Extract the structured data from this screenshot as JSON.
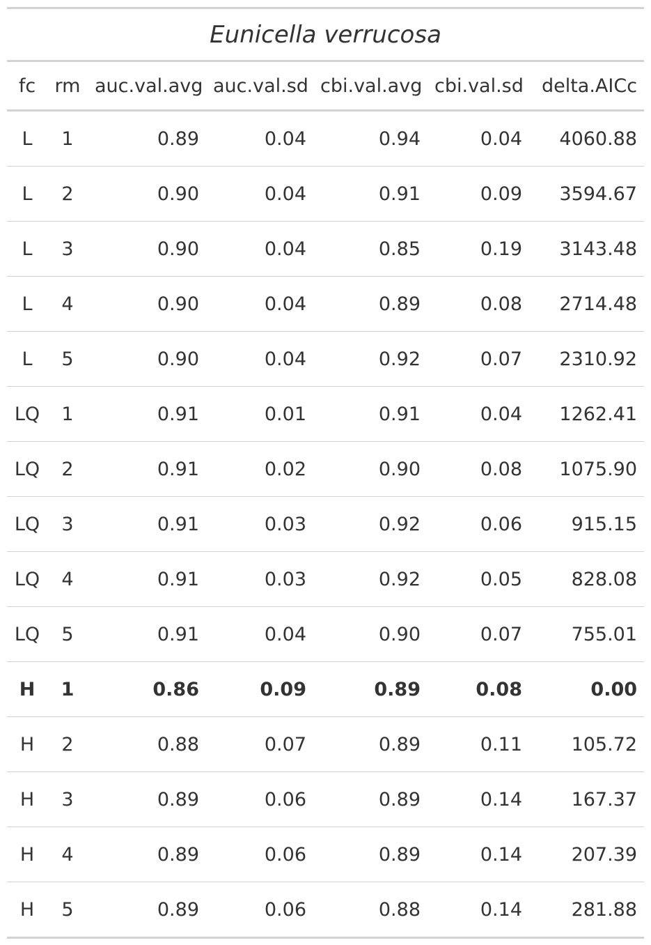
{
  "title": "Eunicella verrucosa",
  "columns": [
    "fc",
    "rm",
    "auc.val.avg",
    "auc.val.sd",
    "cbi.val.avg",
    "cbi.val.sd",
    "delta.AICc"
  ],
  "rows": [
    {
      "fc": "L",
      "rm": "1",
      "auc_val_avg": "0.89",
      "auc_val_sd": "0.04",
      "cbi_val_avg": "0.94",
      "cbi_val_sd": "0.04",
      "delta_AICc": "4060.88",
      "bold": false
    },
    {
      "fc": "L",
      "rm": "2",
      "auc_val_avg": "0.90",
      "auc_val_sd": "0.04",
      "cbi_val_avg": "0.91",
      "cbi_val_sd": "0.09",
      "delta_AICc": "3594.67",
      "bold": false
    },
    {
      "fc": "L",
      "rm": "3",
      "auc_val_avg": "0.90",
      "auc_val_sd": "0.04",
      "cbi_val_avg": "0.85",
      "cbi_val_sd": "0.19",
      "delta_AICc": "3143.48",
      "bold": false
    },
    {
      "fc": "L",
      "rm": "4",
      "auc_val_avg": "0.90",
      "auc_val_sd": "0.04",
      "cbi_val_avg": "0.89",
      "cbi_val_sd": "0.08",
      "delta_AICc": "2714.48",
      "bold": false
    },
    {
      "fc": "L",
      "rm": "5",
      "auc_val_avg": "0.90",
      "auc_val_sd": "0.04",
      "cbi_val_avg": "0.92",
      "cbi_val_sd": "0.07",
      "delta_AICc": "2310.92",
      "bold": false
    },
    {
      "fc": "LQ",
      "rm": "1",
      "auc_val_avg": "0.91",
      "auc_val_sd": "0.01",
      "cbi_val_avg": "0.91",
      "cbi_val_sd": "0.04",
      "delta_AICc": "1262.41",
      "bold": false
    },
    {
      "fc": "LQ",
      "rm": "2",
      "auc_val_avg": "0.91",
      "auc_val_sd": "0.02",
      "cbi_val_avg": "0.90",
      "cbi_val_sd": "0.08",
      "delta_AICc": "1075.90",
      "bold": false
    },
    {
      "fc": "LQ",
      "rm": "3",
      "auc_val_avg": "0.91",
      "auc_val_sd": "0.03",
      "cbi_val_avg": "0.92",
      "cbi_val_sd": "0.06",
      "delta_AICc": "915.15",
      "bold": false
    },
    {
      "fc": "LQ",
      "rm": "4",
      "auc_val_avg": "0.91",
      "auc_val_sd": "0.03",
      "cbi_val_avg": "0.92",
      "cbi_val_sd": "0.05",
      "delta_AICc": "828.08",
      "bold": false
    },
    {
      "fc": "LQ",
      "rm": "5",
      "auc_val_avg": "0.91",
      "auc_val_sd": "0.04",
      "cbi_val_avg": "0.90",
      "cbi_val_sd": "0.07",
      "delta_AICc": "755.01",
      "bold": false
    },
    {
      "fc": "H",
      "rm": "1",
      "auc_val_avg": "0.86",
      "auc_val_sd": "0.09",
      "cbi_val_avg": "0.89",
      "cbi_val_sd": "0.08",
      "delta_AICc": "0.00",
      "bold": true
    },
    {
      "fc": "H",
      "rm": "2",
      "auc_val_avg": "0.88",
      "auc_val_sd": "0.07",
      "cbi_val_avg": "0.89",
      "cbi_val_sd": "0.11",
      "delta_AICc": "105.72",
      "bold": false
    },
    {
      "fc": "H",
      "rm": "3",
      "auc_val_avg": "0.89",
      "auc_val_sd": "0.06",
      "cbi_val_avg": "0.89",
      "cbi_val_sd": "0.14",
      "delta_AICc": "167.37",
      "bold": false
    },
    {
      "fc": "H",
      "rm": "4",
      "auc_val_avg": "0.89",
      "auc_val_sd": "0.06",
      "cbi_val_avg": "0.89",
      "cbi_val_sd": "0.14",
      "delta_AICc": "207.39",
      "bold": false
    },
    {
      "fc": "H",
      "rm": "5",
      "auc_val_avg": "0.89",
      "auc_val_sd": "0.06",
      "cbi_val_avg": "0.88",
      "cbi_val_sd": "0.14",
      "delta_AICc": "281.88",
      "bold": false
    }
  ],
  "colors": {
    "text": "#333333",
    "rule": "#d3d3d3"
  }
}
